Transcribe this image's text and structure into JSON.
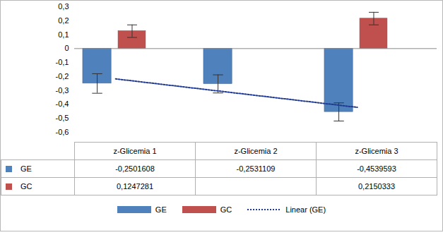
{
  "chart_data": {
    "type": "bar",
    "categories": [
      "z-Glicemia 1",
      "z-Glicemia 2",
      "z-Glicemia 3"
    ],
    "series": [
      {
        "name": "GE",
        "color": "#4f81bd",
        "values": [
          -0.2501608,
          -0.2531109,
          -0.4539593
        ],
        "value_labels": [
          "-0,2501608",
          "-0,2531109",
          "-0,4539593"
        ],
        "errors": [
          0.07,
          0.065,
          0.065
        ]
      },
      {
        "name": "GC",
        "color": "#c0504d",
        "values": [
          0.1247281,
          null,
          0.2150333
        ],
        "value_labels": [
          "0,1247281",
          null,
          "0,2150333"
        ],
        "errors": [
          0.045,
          null,
          0.045
        ]
      },
      {
        "name": "Linear (GE)",
        "type": "line",
        "line_style": "dotted",
        "color": "#1f3a93",
        "values": [
          -0.217,
          -0.319,
          -0.421
        ]
      }
    ],
    "ylim": [
      -0.6,
      0.3
    ],
    "yticks": [
      {
        "value": 0.3,
        "label": "0,3"
      },
      {
        "value": 0.2,
        "label": "0,2"
      },
      {
        "value": 0.1,
        "label": "0,1"
      },
      0,
      {
        "value": -0.1,
        "label": "-0,1"
      },
      {
        "value": -0.2,
        "label": "-0,2"
      },
      {
        "value": -0.3,
        "label": "-0,3"
      },
      {
        "value": -0.4,
        "label": "-0,4"
      },
      {
        "value": -0.5,
        "label": "-0,5"
      },
      {
        "value": -0.6,
        "label": "-0,6"
      }
    ],
    "grid": false,
    "legend": "bottom"
  }
}
